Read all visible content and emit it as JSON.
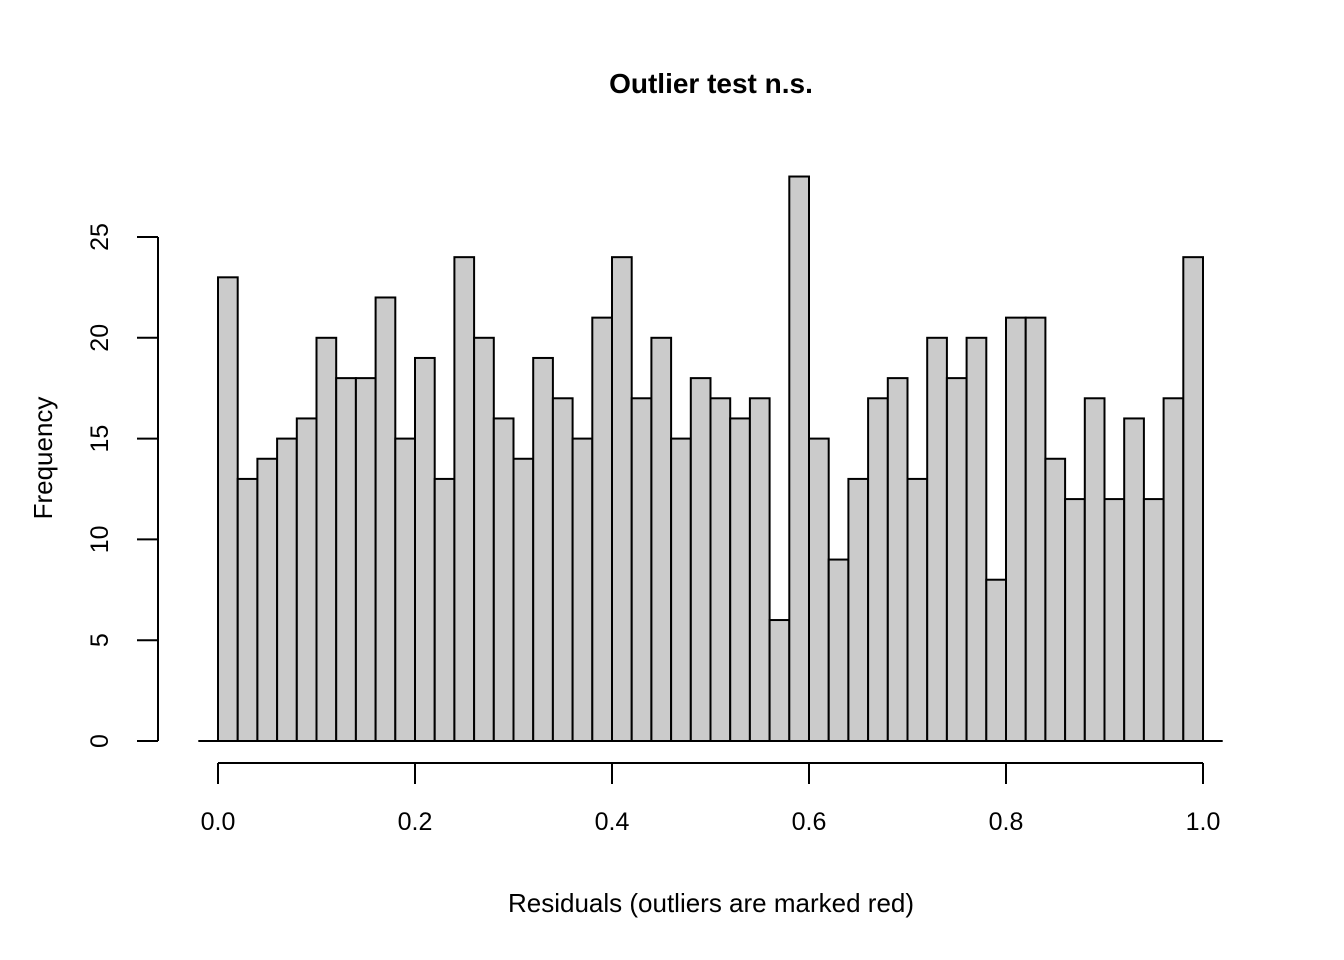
{
  "title": "Outlier test n.s.",
  "chart_data": {
    "type": "bar",
    "subtype": "histogram",
    "title": "Outlier test n.s.",
    "xlabel": "Residuals (outliers are marked red)",
    "ylabel": "Frequency",
    "bin_start": 0.0,
    "bin_width": 0.02,
    "values": [
      23,
      13,
      14,
      15,
      16,
      20,
      18,
      18,
      22,
      15,
      19,
      13,
      24,
      20,
      16,
      14,
      19,
      17,
      15,
      21,
      24,
      17,
      20,
      15,
      18,
      17,
      16,
      17,
      6,
      28,
      15,
      9,
      13,
      17,
      18,
      13,
      20,
      18,
      20,
      8,
      21,
      21,
      14,
      12,
      17,
      12,
      16,
      12,
      17,
      24
    ],
    "x_ticks": [
      "0.0",
      "0.2",
      "0.4",
      "0.6",
      "0.8",
      "1.0"
    ],
    "x_tick_values": [
      0.0,
      0.2,
      0.4,
      0.6,
      0.8,
      1.0
    ],
    "y_ticks": [
      "0",
      "5",
      "10",
      "15",
      "20",
      "25"
    ],
    "y_tick_values": [
      0,
      5,
      10,
      15,
      20,
      25
    ],
    "xlim": [
      0.0,
      1.0
    ],
    "ylim": [
      0,
      25
    ],
    "grid": false,
    "legend": false,
    "bar_fill": "#cbcbcb",
    "bar_stroke": "#000000",
    "axis_color": "#000000",
    "background": "#ffffff"
  }
}
